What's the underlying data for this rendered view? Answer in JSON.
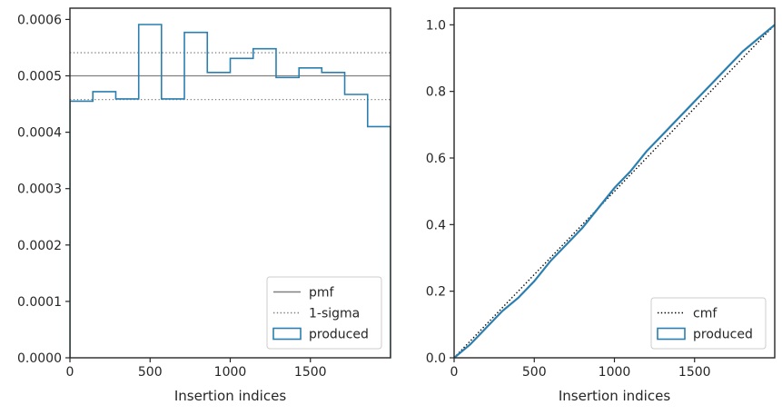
{
  "chart_data": [
    {
      "type": "histogram",
      "xlabel": "Insertion indices",
      "ylabel": "",
      "xlim": [
        0,
        2000
      ],
      "ylim": [
        0,
        0.00062
      ],
      "x_ticks": [
        0,
        500,
        1000,
        1500
      ],
      "x_tick_labels": [
        "0",
        "500",
        "1000",
        "1500"
      ],
      "y_ticks": [
        0,
        0.0001,
        0.0002,
        0.0003,
        0.0004,
        0.0005,
        0.0006
      ],
      "y_tick_labels": [
        "0.0000",
        "0.0001",
        "0.0002",
        "0.0003",
        "0.0004",
        "0.0005",
        "0.0006"
      ],
      "grid": false,
      "legend_position": "bottom-right",
      "reference_lines": [
        {
          "name": "pmf",
          "y": 0.0005,
          "style": "solid",
          "color": "#808080"
        },
        {
          "name": "1-sigma",
          "y": [
            0.000458,
            0.000541
          ],
          "style": "dotted",
          "color": "#808080"
        }
      ],
      "series": [
        {
          "name": "produced",
          "style": "step",
          "color": "#2a7fb0",
          "bin_edges": [
            0,
            143,
            286,
            429,
            571,
            714,
            857,
            1000,
            1143,
            1286,
            1429,
            1571,
            1714,
            1857,
            2000
          ],
          "values": [
            0.000455,
            0.000472,
            0.000459,
            0.000591,
            0.000459,
            0.000577,
            0.000506,
            0.000531,
            0.000548,
            0.000497,
            0.000514,
            0.000506,
            0.000467,
            0.00041
          ]
        }
      ],
      "legend": [
        {
          "label": "pmf",
          "kind": "line-solid",
          "color": "#808080"
        },
        {
          "label": "1-sigma",
          "kind": "line-dotted",
          "color": "#808080"
        },
        {
          "label": "produced",
          "kind": "patch",
          "color": "#2a7fb0"
        }
      ]
    },
    {
      "type": "line",
      "xlabel": "Insertion indices",
      "ylabel": "",
      "xlim": [
        0,
        2000
      ],
      "ylim": [
        0,
        1.05
      ],
      "x_ticks": [
        0,
        500,
        1000,
        1500
      ],
      "x_tick_labels": [
        "0",
        "500",
        "1000",
        "1500"
      ],
      "y_ticks": [
        0,
        0.2,
        0.4,
        0.6,
        0.8,
        1.0
      ],
      "y_tick_labels": [
        "0.0",
        "0.2",
        "0.4",
        "0.6",
        "0.8",
        "1.0"
      ],
      "grid": false,
      "legend_position": "bottom-right",
      "series": [
        {
          "name": "cmf",
          "style": "dotted",
          "color": "#000000",
          "x": [
            0,
            2000
          ],
          "y": [
            0,
            1.0
          ]
        },
        {
          "name": "produced",
          "style": "solid",
          "color": "#2a7fb0",
          "x": [
            0,
            100,
            200,
            300,
            400,
            500,
            600,
            700,
            800,
            900,
            1000,
            1100,
            1200,
            1300,
            1400,
            1500,
            1600,
            1700,
            1800,
            1900,
            2000
          ],
          "y": [
            0,
            0.04,
            0.09,
            0.14,
            0.18,
            0.23,
            0.29,
            0.34,
            0.39,
            0.45,
            0.51,
            0.56,
            0.62,
            0.67,
            0.72,
            0.77,
            0.82,
            0.87,
            0.92,
            0.96,
            1.0
          ]
        }
      ],
      "legend": [
        {
          "label": "cmf",
          "kind": "line-dotted",
          "color": "#000000"
        },
        {
          "label": "produced",
          "kind": "patch",
          "color": "#2a7fb0"
        }
      ]
    }
  ]
}
